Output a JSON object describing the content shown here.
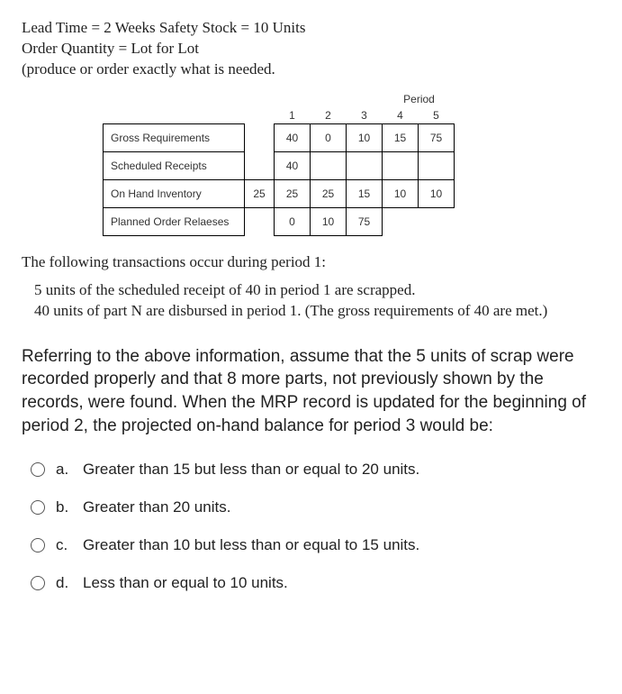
{
  "header": {
    "line1": "Lead Time = 2 Weeks    Safety Stock = 10 Units",
    "line2": "Order Quantity = Lot for Lot",
    "line3": "(produce or order exactly what is needed."
  },
  "table": {
    "period_label": "Period",
    "period_nums": [
      "1",
      "2",
      "3",
      "4",
      "5"
    ],
    "rows": [
      {
        "label": "Gross Requirements",
        "lead": "",
        "p": [
          "40",
          "0",
          "10",
          "15",
          "75"
        ],
        "lead_border": false,
        "borders": [
          true,
          true,
          true,
          true,
          true
        ]
      },
      {
        "label": "Scheduled Receipts",
        "lead": "",
        "p": [
          "40",
          "",
          "",
          "",
          ""
        ],
        "lead_border": false,
        "borders": [
          true,
          true,
          true,
          true,
          true
        ]
      },
      {
        "label": "On Hand Inventory",
        "lead": "25",
        "p": [
          "25",
          "25",
          "15",
          "10",
          "10"
        ],
        "lead_border": true,
        "borders": [
          true,
          true,
          true,
          true,
          true
        ]
      },
      {
        "label": "Planned Order Relaeses",
        "lead": "",
        "p": [
          "0",
          "10",
          "75",
          "",
          ""
        ],
        "lead_border": false,
        "borders": [
          true,
          true,
          true,
          false,
          false
        ]
      }
    ]
  },
  "narrative": {
    "lead": "The following transactions occur during period 1:",
    "item1": "5 units of the scheduled receipt of 40 in period 1 are scrapped.",
    "item2": "40 units of part N are disbursed in period 1. (The gross requirements of 40 are met.)"
  },
  "question": "Referring to the above information, assume that the 5 units of scrap were recorded properly and that 8 more parts, not previously shown by the records, were found. When the MRP record is updated for the beginning of period 2, the projected on-hand balance for period 3 would be:",
  "options": [
    {
      "letter": "a.",
      "text": "Greater than 15 but less than or equal to 20 units."
    },
    {
      "letter": "b.",
      "text": "Greater than 20 units."
    },
    {
      "letter": "c.",
      "text": "Greater than 10 but less than or equal to 15 units."
    },
    {
      "letter": "d.",
      "text": "Less than or equal to 10 units."
    }
  ]
}
